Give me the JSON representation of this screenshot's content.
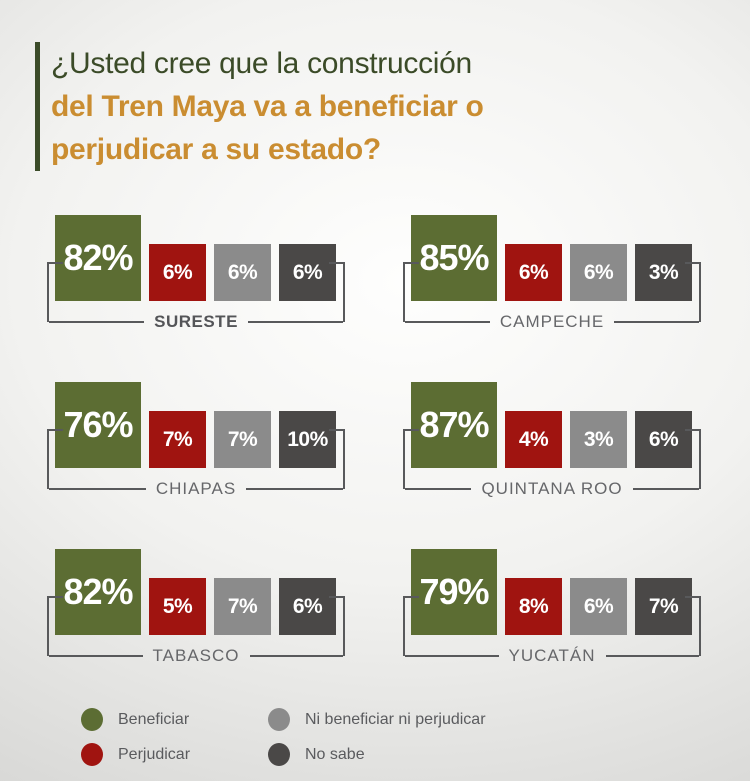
{
  "colors": {
    "green": "#5c6d33",
    "red": "#a01410",
    "gray": "#8b8b8b",
    "dark": "#4a4847",
    "title-green": "#3b4b28",
    "orange": "#ca8d31",
    "line": "#58595b"
  },
  "title": {
    "line1": "¿Usted cree que la construcción",
    "line2": "del Tren Maya va a beneficiar o",
    "line3": "perjudicar a su estado?"
  },
  "chart_data": {
    "type": "bar",
    "title": "¿Usted cree que la construcción del Tren Maya va a beneficiar o perjudicar a su estado?",
    "unit": "%",
    "ylim": [
      0,
      100
    ],
    "legend_position": "bottom",
    "categories": [
      "SURESTE",
      "CAMPECHE",
      "CHIAPAS",
      "QUINTANA ROO",
      "TABASCO",
      "YUCATÁN"
    ],
    "series": [
      {
        "name": "Beneficiar",
        "color": "#5c6d33",
        "values": [
          82,
          85,
          76,
          87,
          82,
          79
        ]
      },
      {
        "name": "Perjudicar",
        "color": "#a01410",
        "values": [
          6,
          6,
          7,
          4,
          5,
          8
        ]
      },
      {
        "name": "Ni beneficiar ni perjudicar",
        "color": "#8b8b8b",
        "values": [
          6,
          6,
          7,
          3,
          7,
          6
        ]
      },
      {
        "name": "No sabe",
        "color": "#4a4847",
        "values": [
          6,
          3,
          10,
          6,
          6,
          7
        ]
      }
    ],
    "groups": [
      {
        "label": "SURESTE",
        "emphasis": true,
        "display": [
          "82%",
          "6%",
          "6%",
          "6%"
        ]
      },
      {
        "label": "CAMPECHE",
        "emphasis": false,
        "display": [
          "85%",
          "6%",
          "6%",
          "3%"
        ]
      },
      {
        "label": "CHIAPAS",
        "emphasis": false,
        "display": [
          "76%",
          "7%",
          "7%",
          "10%"
        ]
      },
      {
        "label": "QUINTANA ROO",
        "emphasis": false,
        "display": [
          "87%",
          "4%",
          "3%",
          "6%"
        ]
      },
      {
        "label": "TABASCO",
        "emphasis": false,
        "display": [
          "82%",
          "5%",
          "7%",
          "6%"
        ]
      },
      {
        "label": "YUCATÁN",
        "emphasis": false,
        "display": [
          "79%",
          "8%",
          "6%",
          "7%"
        ]
      }
    ]
  },
  "legend": {
    "items": [
      {
        "label": "Beneficiar",
        "color": "#5c6d33"
      },
      {
        "label": "Perjudicar",
        "color": "#a01410"
      },
      {
        "label": "Ni beneficiar ni perjudicar",
        "color": "#8b8b8b"
      },
      {
        "label": "No sabe",
        "color": "#4a4847"
      }
    ]
  }
}
